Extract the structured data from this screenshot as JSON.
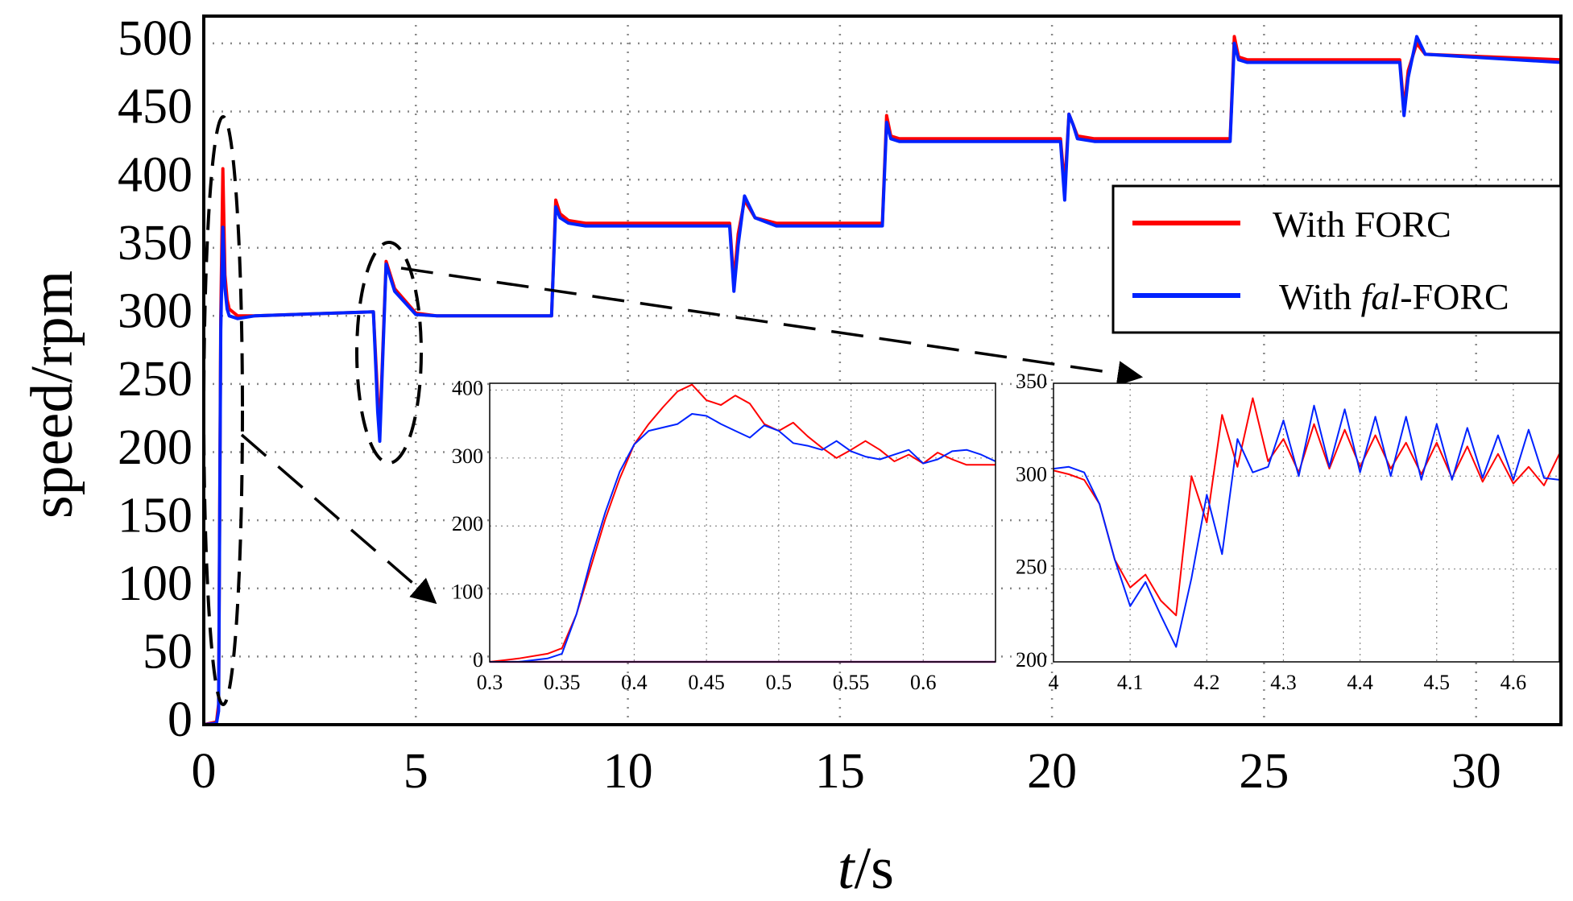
{
  "chart_data": [
    {
      "name": "main",
      "type": "line",
      "title": "",
      "xlabel_var": "t",
      "xlabel_unit": "/s",
      "ylabel": "speed/rpm",
      "xlim": [
        0,
        32
      ],
      "ylim": [
        0,
        520
      ],
      "xticks": [
        0,
        5,
        10,
        15,
        20,
        25,
        30
      ],
      "xtick_labels": [
        "0",
        "5",
        "10",
        "15",
        "20",
        "25",
        "30"
      ],
      "yticks": [
        0,
        50,
        100,
        150,
        200,
        250,
        300,
        350,
        400,
        450,
        500
      ],
      "ytick_labels": [
        "0",
        "50",
        "100",
        "150",
        "200",
        "250",
        "300",
        "350",
        "400",
        "450",
        "500"
      ],
      "grid": true,
      "legend_position": "right",
      "series": [
        {
          "name_prefix": "With FORC",
          "name_italic": "",
          "name_suffix": "",
          "color": "#ff0000",
          "x": [
            0,
            0.3,
            0.35,
            0.4,
            0.45,
            0.5,
            0.55,
            0.6,
            0.8,
            1.2,
            4.0,
            4.1,
            4.15,
            4.3,
            4.5,
            5.0,
            5.5,
            8.2,
            8.3,
            8.4,
            8.6,
            9.0,
            12.4,
            12.5,
            12.6,
            12.75,
            13.0,
            13.5,
            16.0,
            16.1,
            16.2,
            16.4,
            20.2,
            20.3,
            20.4,
            20.5,
            20.6,
            21.0,
            24.2,
            24.3,
            24.4,
            24.6,
            28.2,
            28.3,
            28.4,
            28.6,
            28.8,
            32
          ],
          "y": [
            0,
            2,
            15,
            300,
            408,
            330,
            312,
            305,
            300,
            300,
            303,
            240,
            215,
            340,
            320,
            302,
            300,
            300,
            385,
            375,
            370,
            368,
            368,
            325,
            360,
            385,
            372,
            368,
            368,
            447,
            432,
            430,
            430,
            395,
            448,
            440,
            432,
            430,
            430,
            505,
            490,
            488,
            488,
            452,
            480,
            500,
            492,
            488
          ]
        },
        {
          "name_prefix": "With ",
          "name_italic": "fal",
          "name_suffix": "-FORC",
          "color": "#0022ff",
          "x": [
            0,
            0.3,
            0.35,
            0.4,
            0.45,
            0.5,
            0.55,
            0.6,
            0.8,
            1.2,
            4.0,
            4.1,
            4.15,
            4.3,
            4.5,
            5.0,
            5.5,
            8.2,
            8.3,
            8.4,
            8.6,
            9.0,
            12.4,
            12.5,
            12.6,
            12.75,
            13.0,
            13.5,
            16.0,
            16.1,
            16.2,
            16.4,
            20.2,
            20.3,
            20.4,
            20.5,
            20.6,
            21.0,
            24.2,
            24.3,
            24.4,
            24.6,
            28.2,
            28.3,
            28.4,
            28.6,
            28.8,
            32
          ],
          "y": [
            0,
            1,
            10,
            290,
            365,
            320,
            305,
            300,
            298,
            300,
            303,
            230,
            208,
            338,
            318,
            301,
            300,
            300,
            380,
            372,
            368,
            366,
            366,
            318,
            352,
            388,
            372,
            366,
            366,
            442,
            430,
            428,
            428,
            385,
            448,
            440,
            430,
            428,
            428,
            500,
            488,
            486,
            486,
            447,
            475,
            505,
            492,
            486
          ]
        }
      ]
    },
    {
      "name": "inset-startup",
      "type": "line",
      "xlim": [
        0.3,
        0.65
      ],
      "ylim": [
        0,
        410
      ],
      "xticks": [
        0.3,
        0.35,
        0.4,
        0.45,
        0.5,
        0.55,
        0.6
      ],
      "xtick_labels": [
        "0.3",
        "0.35",
        "0.4",
        "0.45",
        "0.5",
        "0.55",
        "0.6"
      ],
      "yticks": [
        0,
        100,
        200,
        300,
        400
      ],
      "ytick_labels": [
        "0",
        "100",
        "200",
        "300",
        "400"
      ],
      "grid": true,
      "baseline_color": "#aa33aa",
      "series": [
        {
          "name": "With FORC",
          "color": "#ff0000",
          "x": [
            0.3,
            0.32,
            0.34,
            0.35,
            0.36,
            0.37,
            0.38,
            0.39,
            0.4,
            0.41,
            0.42,
            0.43,
            0.44,
            0.45,
            0.46,
            0.47,
            0.48,
            0.49,
            0.5,
            0.51,
            0.52,
            0.53,
            0.54,
            0.55,
            0.56,
            0.57,
            0.58,
            0.59,
            0.6,
            0.61,
            0.62,
            0.63,
            0.64,
            0.65
          ],
          "y": [
            0,
            5,
            12,
            20,
            70,
            140,
            210,
            270,
            320,
            350,
            375,
            398,
            408,
            385,
            378,
            392,
            380,
            350,
            340,
            352,
            332,
            315,
            300,
            312,
            325,
            312,
            295,
            305,
            292,
            308,
            298,
            290,
            290,
            290
          ]
        },
        {
          "name": "With fal-FORC",
          "color": "#0022ff",
          "x": [
            0.3,
            0.32,
            0.34,
            0.35,
            0.36,
            0.37,
            0.38,
            0.39,
            0.4,
            0.41,
            0.42,
            0.43,
            0.44,
            0.45,
            0.46,
            0.47,
            0.48,
            0.49,
            0.5,
            0.51,
            0.52,
            0.53,
            0.54,
            0.55,
            0.56,
            0.57,
            0.58,
            0.59,
            0.6,
            0.61,
            0.62,
            0.63,
            0.64,
            0.65
          ],
          "y": [
            0,
            0,
            5,
            12,
            70,
            150,
            220,
            280,
            320,
            340,
            345,
            350,
            365,
            362,
            350,
            340,
            330,
            348,
            340,
            322,
            318,
            312,
            325,
            310,
            302,
            298,
            305,
            312,
            292,
            298,
            310,
            312,
            305,
            295
          ]
        }
      ]
    },
    {
      "name": "inset-disturbance",
      "type": "line",
      "xlim": [
        4.0,
        4.66
      ],
      "ylim": [
        200,
        350
      ],
      "xticks": [
        4.0,
        4.1,
        4.2,
        4.3,
        4.4,
        4.5,
        4.6
      ],
      "xtick_labels": [
        "4",
        "4.1",
        "4.2",
        "4.3",
        "4.4",
        "4.5",
        "4.6"
      ],
      "yticks": [
        200,
        250,
        300,
        350
      ],
      "ytick_labels": [
        "200",
        "250",
        "300",
        "350"
      ],
      "grid": true,
      "series": [
        {
          "name": "With FORC",
          "color": "#ff0000",
          "x": [
            4.0,
            4.02,
            4.04,
            4.06,
            4.08,
            4.1,
            4.12,
            4.14,
            4.16,
            4.18,
            4.2,
            4.22,
            4.24,
            4.26,
            4.28,
            4.3,
            4.32,
            4.34,
            4.36,
            4.38,
            4.4,
            4.42,
            4.44,
            4.46,
            4.48,
            4.5,
            4.52,
            4.54,
            4.56,
            4.58,
            4.6,
            4.62,
            4.64,
            4.66
          ],
          "y": [
            303,
            301,
            298,
            285,
            255,
            240,
            247,
            233,
            225,
            300,
            275,
            333,
            305,
            342,
            308,
            320,
            302,
            328,
            304,
            325,
            305,
            322,
            304,
            318,
            301,
            318,
            299,
            316,
            297,
            312,
            296,
            305,
            295,
            312
          ]
        },
        {
          "name": "With fal-FORC",
          "color": "#0022ff",
          "x": [
            4.0,
            4.02,
            4.04,
            4.06,
            4.08,
            4.1,
            4.12,
            4.14,
            4.16,
            4.18,
            4.2,
            4.22,
            4.24,
            4.26,
            4.28,
            4.3,
            4.32,
            4.34,
            4.36,
            4.38,
            4.4,
            4.42,
            4.44,
            4.46,
            4.48,
            4.5,
            4.52,
            4.54,
            4.56,
            4.58,
            4.6,
            4.62,
            4.64,
            4.66
          ],
          "y": [
            304,
            305,
            302,
            285,
            255,
            230,
            243,
            225,
            208,
            245,
            290,
            258,
            320,
            302,
            305,
            330,
            300,
            338,
            305,
            336,
            302,
            332,
            300,
            332,
            298,
            328,
            298,
            326,
            299,
            322,
            298,
            325,
            299,
            298
          ]
        }
      ]
    }
  ]
}
